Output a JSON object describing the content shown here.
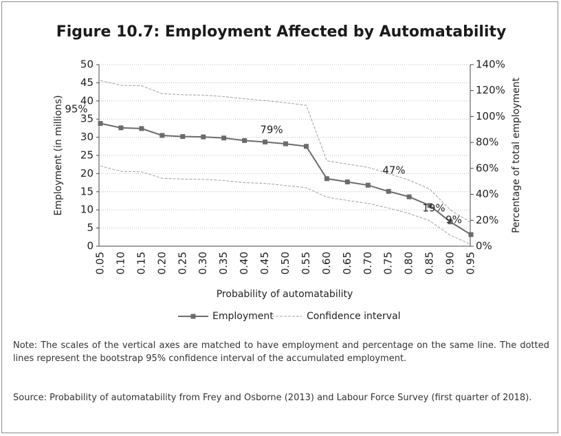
{
  "chart_data": {
    "type": "line",
    "title": "Figure 10.7: Employment Affected by Automatability",
    "x_label": "Probability of automatability",
    "y_label": "Employment (in millions)",
    "y2_label": "Percentage of total employment",
    "categories": [
      "0.05",
      "0.10",
      "0.15",
      "0.20",
      "0.25",
      "0.30",
      "0.35",
      "0.40",
      "0.45",
      "0.50",
      "0.55",
      "0.60",
      "0.65",
      "0.70",
      "0.75",
      "0.80",
      "0.85",
      "0.90",
      "0.95"
    ],
    "series": [
      {
        "name": "Employment",
        "color": "#6b6b6b",
        "values": [
          33.8,
          32.6,
          32.4,
          30.5,
          30.2,
          30.1,
          29.8,
          29.1,
          28.7,
          28.2,
          27.5,
          18.6,
          17.7,
          16.8,
          15.1,
          13.6,
          11.2,
          6.7,
          3.2
        ]
      },
      {
        "name": "Confidence interval",
        "color": "#a0a0a0",
        "upper": [
          45.6,
          44.3,
          44.2,
          42.0,
          41.7,
          41.6,
          41.2,
          40.6,
          40.1,
          39.5,
          38.8,
          23.5,
          22.6,
          21.7,
          20.0,
          18.2,
          15.7,
          10.0,
          6.5
        ],
        "lower": [
          22.1,
          20.6,
          20.5,
          18.7,
          18.5,
          18.4,
          18.1,
          17.5,
          17.3,
          16.7,
          16.1,
          13.5,
          12.6,
          11.8,
          10.5,
          9.0,
          7.0,
          3.0,
          0.5
        ]
      }
    ],
    "annotations": [
      "95%",
      "79%",
      "47%",
      "19%",
      "9%"
    ],
    "ylim": [
      0,
      50
    ],
    "yticks": [
      0,
      5,
      10,
      15,
      20,
      25,
      30,
      35,
      40,
      45,
      50
    ],
    "y2lim": [
      0,
      140
    ],
    "y2ticks": [
      {
        "value": 0,
        "label": "0%"
      },
      {
        "value": 20,
        "label": "20%"
      },
      {
        "value": 40,
        "label": "40%"
      },
      {
        "value": 60,
        "label": "60%"
      },
      {
        "value": 80,
        "label": "80%"
      },
      {
        "value": 100,
        "label": "100%"
      },
      {
        "value": 120,
        "label": "120%"
      },
      {
        "value": 140,
        "label": "140%"
      }
    ],
    "grid": true
  },
  "notes": {
    "note": "Note: The scales of the vertical axes are matched to have employment and percentage on the same line. The dotted lines represent the bootstrap 95% confidence interval of the accumulated employment.",
    "source": "Source: Probability of automatability from Frey and Osborne (2013) and Labour Force Survey (first quarter of 2018)."
  }
}
